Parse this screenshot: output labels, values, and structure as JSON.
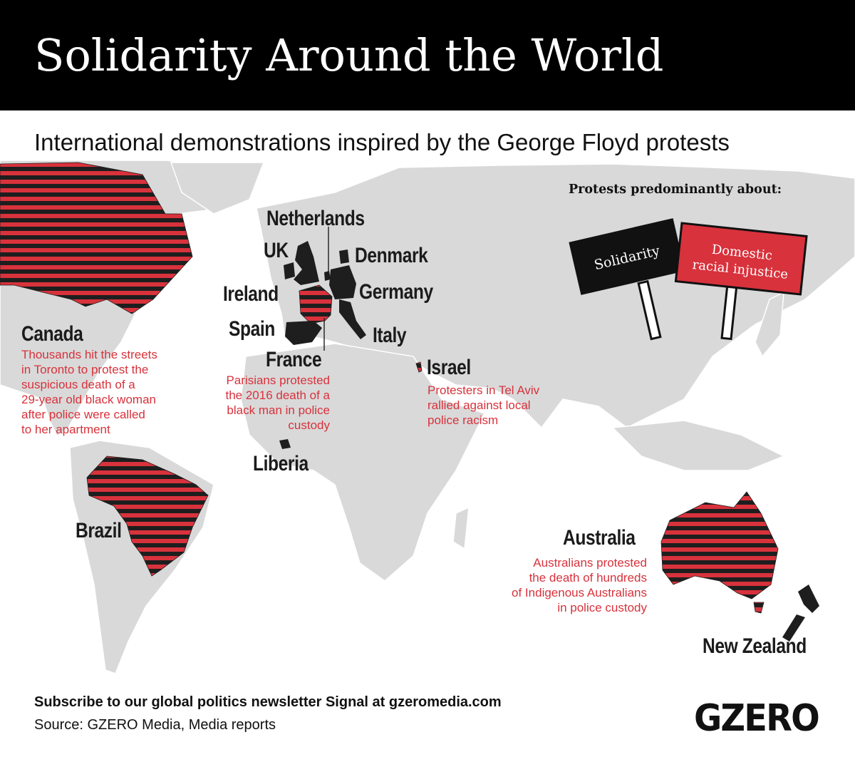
{
  "header": {
    "title": "Solidarity Around the World",
    "subtitle": "International demonstrations inspired by the George Floyd protests"
  },
  "legend": {
    "title": "Protests predominantly about:",
    "signs": [
      {
        "label": "Solidarity",
        "lines": [
          "Solidarity"
        ],
        "color": "#000000",
        "pattern": "solid-black"
      },
      {
        "label": "Domestic racial injustice",
        "lines": [
          "Domestic",
          "racial injustice"
        ],
        "color": "#d8323c",
        "pattern": "red-stripes"
      }
    ]
  },
  "countries": [
    {
      "name": "Canada",
      "category": "Domestic racial injustice",
      "note": [
        "Thousands hit the streets",
        "in Toronto to protest the",
        "suspicious death of a",
        "29-year old black woman",
        "after police were called",
        "to her apartment"
      ]
    },
    {
      "name": "Brazil",
      "category": "Domestic racial injustice"
    },
    {
      "name": "Netherlands",
      "category": "Solidarity"
    },
    {
      "name": "UK",
      "category": "Solidarity"
    },
    {
      "name": "Denmark",
      "category": "Solidarity"
    },
    {
      "name": "Ireland",
      "category": "Solidarity"
    },
    {
      "name": "Germany",
      "category": "Solidarity"
    },
    {
      "name": "Spain",
      "category": "Solidarity"
    },
    {
      "name": "Italy",
      "category": "Solidarity"
    },
    {
      "name": "France",
      "category": "Domestic racial injustice",
      "note": [
        "Parisians protested",
        "the 2016 death of a",
        "black man in police",
        "custody"
      ]
    },
    {
      "name": "Israel",
      "category": "Domestic racial injustice",
      "note": [
        "Protesters in Tel Aviv",
        "rallied against local",
        "police racism"
      ]
    },
    {
      "name": "Liberia",
      "category": "Solidarity"
    },
    {
      "name": "Australia",
      "category": "Domestic racial injustice",
      "note": [
        "Australians protested",
        "the death of hundreds",
        "of Indigenous Australians",
        "in police custody"
      ]
    },
    {
      "name": "New Zealand",
      "category": "Solidarity"
    }
  ],
  "footer": {
    "subscribe": "Subscribe to our global politics newsletter Signal at gzeromedia.com",
    "source": "Source: GZERO Media, Media reports",
    "logo": "GZERO"
  },
  "colors": {
    "header_bg": "#000000",
    "land": "#d9d9d9",
    "solidarity": "#1e1e1e",
    "domestic": "#d8323c",
    "note_text": "#d8323c"
  }
}
